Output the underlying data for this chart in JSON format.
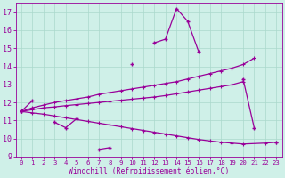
{
  "xlabel": "Windchill (Refroidissement éolien,°C)",
  "ylim": [
    9,
    17.5
  ],
  "xlim": [
    -0.5,
    23.5
  ],
  "y_ticks": [
    9,
    10,
    11,
    12,
    13,
    14,
    15,
    16,
    17
  ],
  "x_ticks": [
    0,
    1,
    2,
    3,
    4,
    5,
    6,
    7,
    8,
    9,
    10,
    11,
    12,
    13,
    14,
    15,
    16,
    17,
    18,
    19,
    20,
    21,
    22,
    23
  ],
  "background_color": "#cff0e8",
  "grid_color": "#aad8cc",
  "line_color": "#990099",
  "line1_segments": [
    [
      [
        0,
        11.5
      ],
      [
        1,
        12.1
      ]
    ],
    [
      [
        3,
        10.9
      ],
      [
        4,
        10.6
      ],
      [
        5,
        11.1
      ]
    ],
    [
      [
        7,
        9.4
      ],
      [
        8,
        9.5
      ]
    ],
    [
      [
        10,
        14.1
      ]
    ],
    [
      [
        12,
        15.3
      ],
      [
        13,
        15.5
      ],
      [
        14,
        17.2
      ],
      [
        15,
        16.5
      ],
      [
        16,
        14.8
      ]
    ],
    [
      [
        20,
        13.3
      ],
      [
        21,
        10.6
      ]
    ],
    [
      [
        23,
        9.8
      ]
    ]
  ],
  "line2_pts": [
    [
      0,
      11.5
    ],
    [
      1,
      11.7
    ],
    [
      2,
      11.85
    ],
    [
      3,
      12.0
    ],
    [
      4,
      12.1
    ],
    [
      5,
      12.2
    ],
    [
      6,
      12.3
    ],
    [
      7,
      12.45
    ],
    [
      8,
      12.55
    ],
    [
      9,
      12.65
    ],
    [
      10,
      12.75
    ],
    [
      11,
      12.85
    ],
    [
      12,
      12.95
    ],
    [
      13,
      13.05
    ],
    [
      14,
      13.15
    ],
    [
      15,
      13.3
    ],
    [
      16,
      13.45
    ],
    [
      17,
      13.6
    ],
    [
      18,
      13.75
    ],
    [
      19,
      13.9
    ],
    [
      20,
      14.1
    ],
    [
      21,
      14.45
    ]
  ],
  "line3_pts": [
    [
      0,
      11.5
    ],
    [
      1,
      11.6
    ],
    [
      2,
      11.7
    ],
    [
      3,
      11.75
    ],
    [
      4,
      11.82
    ],
    [
      5,
      11.88
    ],
    [
      6,
      11.94
    ],
    [
      7,
      12.0
    ],
    [
      8,
      12.06
    ],
    [
      9,
      12.12
    ],
    [
      10,
      12.18
    ],
    [
      11,
      12.24
    ],
    [
      12,
      12.3
    ],
    [
      13,
      12.38
    ],
    [
      14,
      12.48
    ],
    [
      15,
      12.58
    ],
    [
      16,
      12.68
    ],
    [
      17,
      12.78
    ],
    [
      18,
      12.88
    ],
    [
      19,
      12.98
    ],
    [
      20,
      13.15
    ]
  ],
  "line4_pts": [
    [
      0,
      11.5
    ],
    [
      1,
      11.42
    ],
    [
      2,
      11.35
    ],
    [
      3,
      11.25
    ],
    [
      4,
      11.15
    ],
    [
      5,
      11.05
    ],
    [
      6,
      10.95
    ],
    [
      7,
      10.85
    ],
    [
      8,
      10.75
    ],
    [
      9,
      10.65
    ],
    [
      10,
      10.55
    ],
    [
      11,
      10.45
    ],
    [
      12,
      10.35
    ],
    [
      13,
      10.25
    ],
    [
      14,
      10.15
    ],
    [
      15,
      10.05
    ],
    [
      16,
      9.95
    ],
    [
      17,
      9.87
    ],
    [
      18,
      9.8
    ],
    [
      19,
      9.75
    ],
    [
      20,
      9.7
    ],
    [
      22,
      9.75
    ],
    [
      23,
      9.8
    ]
  ]
}
